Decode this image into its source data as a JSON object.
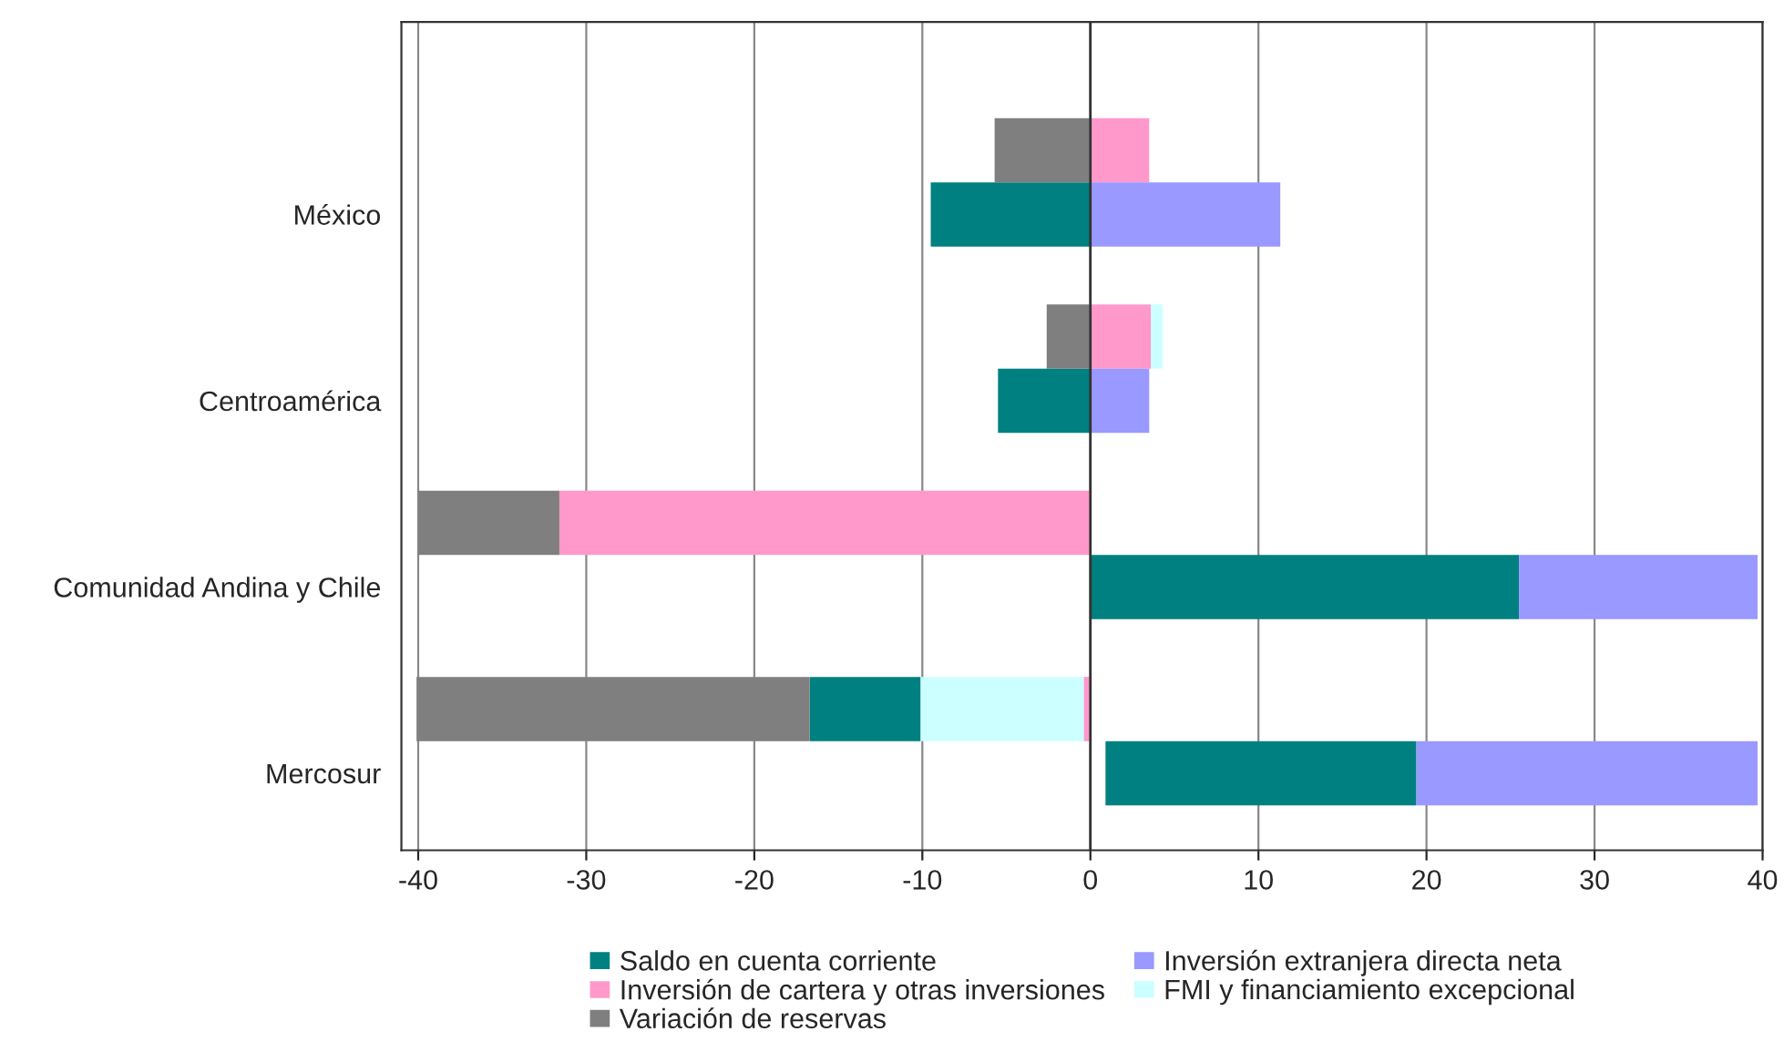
{
  "chart_data": {
    "type": "bar",
    "orientation": "horizontal",
    "categories": [
      null,
      "México",
      null,
      "Centroamérica",
      null,
      "Comunidad Andina y Chile",
      null,
      "Mercosur"
    ],
    "series": [
      {
        "name": "Saldo en cuenta corriente",
        "color": "#008080",
        "base": [
          null,
          0,
          null,
          0,
          null,
          0,
          -10.1,
          0.9
        ],
        "values": [
          null,
          -9.5,
          null,
          -5.5,
          null,
          25.5,
          -6.6,
          18.5
        ]
      },
      {
        "name": "Inversión de cartera y otras inversiones",
        "color": "#ff99cc",
        "base": [
          0,
          null,
          0,
          null,
          0,
          null,
          0,
          null
        ],
        "values": [
          3.5,
          null,
          3.6,
          null,
          -31.6,
          null,
          -0.4,
          null
        ]
      },
      {
        "name": "Variación de reservas",
        "color": "#7f7f7f",
        "base": [
          0,
          null,
          0,
          null,
          -31.6,
          null,
          -16.7,
          null
        ],
        "values": [
          -5.7,
          null,
          -2.6,
          null,
          -8.4,
          null,
          -23.4,
          null
        ]
      },
      {
        "name": "Inversión extranjera directa neta",
        "color": "#9999ff",
        "base": [
          null,
          0,
          null,
          0,
          null,
          25.5,
          null,
          19.4
        ],
        "values": [
          null,
          11.3,
          null,
          3.5,
          null,
          14.2,
          null,
          20.3
        ]
      },
      {
        "name": "FMI y financiamiento excepcional",
        "color": "#ccffff",
        "base": [
          null,
          null,
          3.6,
          null,
          null,
          null,
          -0.4,
          null
        ],
        "values": [
          null,
          null,
          0.7,
          null,
          null,
          null,
          -9.7,
          null
        ]
      }
    ],
    "xlim": [
      -41,
      40
    ],
    "xticks": [
      -40,
      -30,
      -20,
      -10,
      0,
      10,
      20,
      30,
      40
    ],
    "grid": "x",
    "legend": "bottom"
  }
}
